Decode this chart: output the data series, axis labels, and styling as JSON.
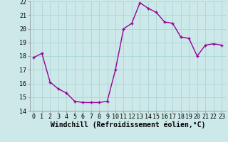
{
  "x": [
    0,
    1,
    2,
    3,
    4,
    5,
    6,
    7,
    8,
    9,
    10,
    11,
    12,
    13,
    14,
    15,
    16,
    17,
    18,
    19,
    20,
    21,
    22,
    23
  ],
  "y": [
    17.9,
    18.2,
    16.1,
    15.6,
    15.3,
    14.7,
    14.6,
    14.6,
    14.6,
    14.7,
    17.0,
    20.0,
    20.4,
    21.9,
    21.5,
    21.2,
    20.5,
    20.4,
    19.4,
    19.3,
    18.0,
    18.8,
    18.9,
    18.8
  ],
  "xlabel": "Windchill (Refroidissement éolien,°C)",
  "xlim_min": -0.5,
  "xlim_max": 23.5,
  "ylim_min": 14,
  "ylim_max": 22,
  "yticks": [
    14,
    15,
    16,
    17,
    18,
    19,
    20,
    21,
    22
  ],
  "xticks": [
    0,
    1,
    2,
    3,
    4,
    5,
    6,
    7,
    8,
    9,
    10,
    11,
    12,
    13,
    14,
    15,
    16,
    17,
    18,
    19,
    20,
    21,
    22,
    23
  ],
  "line_color": "#990099",
  "marker": "+",
  "marker_size": 3,
  "marker_lw": 1.0,
  "line_width": 1.0,
  "bg_color": "#cce8e8",
  "grid_color": "#b0d8d8",
  "tick_label_fontsize": 6,
  "xlabel_fontsize": 7,
  "fig_width": 3.2,
  "fig_height": 2.0,
  "dpi": 100
}
